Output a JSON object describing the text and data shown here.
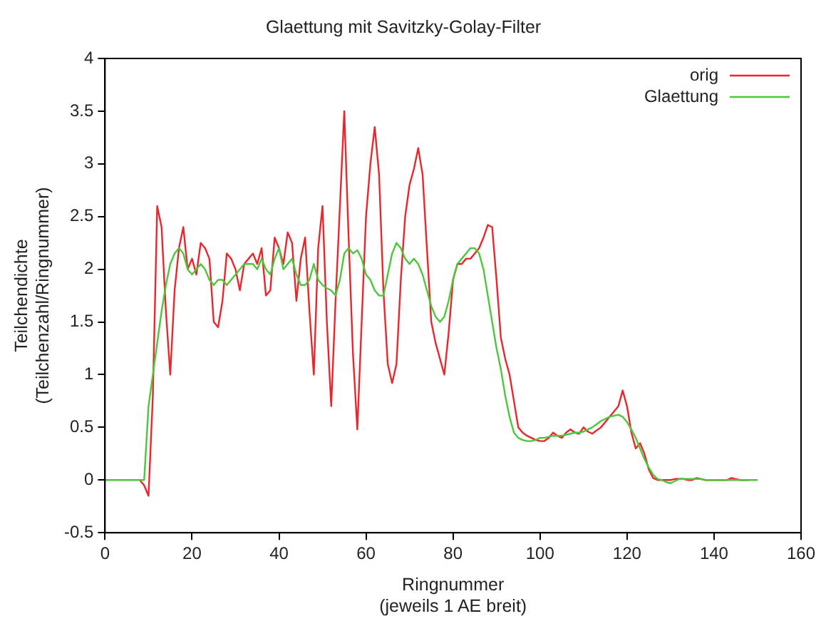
{
  "chart_data": {
    "type": "line",
    "title": "Glaettung mit Savitzky-Golay-Filter",
    "xlabel": "Ringnummer\n(jeweils 1 AE breit)",
    "ylabel": "Teilchendichte\n(Teilchenzahl/Ringnummer)",
    "x": [
      0,
      1,
      2,
      3,
      4,
      5,
      6,
      7,
      8,
      9,
      10,
      11,
      12,
      13,
      14,
      15,
      16,
      17,
      18,
      19,
      20,
      21,
      22,
      23,
      24,
      25,
      26,
      27,
      28,
      29,
      30,
      31,
      32,
      33,
      34,
      35,
      36,
      37,
      38,
      39,
      40,
      41,
      42,
      43,
      44,
      45,
      46,
      47,
      48,
      49,
      50,
      51,
      52,
      53,
      54,
      55,
      56,
      57,
      58,
      59,
      60,
      61,
      62,
      63,
      64,
      65,
      66,
      67,
      68,
      69,
      70,
      71,
      72,
      73,
      74,
      75,
      76,
      77,
      78,
      79,
      80,
      81,
      82,
      83,
      84,
      85,
      86,
      87,
      88,
      89,
      90,
      91,
      92,
      93,
      94,
      95,
      96,
      97,
      98,
      99,
      100,
      101,
      102,
      103,
      104,
      105,
      106,
      107,
      108,
      109,
      110,
      111,
      112,
      113,
      114,
      115,
      116,
      117,
      118,
      119,
      120,
      121,
      122,
      123,
      124,
      125,
      126,
      127,
      128,
      129,
      130,
      131,
      132,
      133,
      134,
      135,
      136,
      137,
      138,
      139,
      140,
      141,
      142,
      143,
      144,
      145,
      146,
      147,
      148,
      149,
      150
    ],
    "series": [
      {
        "name": "orig",
        "color": "#e8262b",
        "values": [
          null,
          null,
          null,
          null,
          null,
          null,
          null,
          null,
          0,
          -0.05,
          -0.15,
          0.8,
          2.6,
          2.4,
          1.6,
          1.0,
          1.8,
          2.2,
          2.4,
          2.0,
          2.1,
          1.95,
          2.25,
          2.2,
          2.1,
          1.5,
          1.45,
          1.7,
          2.15,
          2.1,
          2.0,
          1.8,
          2.05,
          2.1,
          2.15,
          2.05,
          2.2,
          1.75,
          1.8,
          2.3,
          2.2,
          2.05,
          2.35,
          2.25,
          1.7,
          2.1,
          2.3,
          1.6,
          1.0,
          2.2,
          2.6,
          1.5,
          0.7,
          1.7,
          2.6,
          3.5,
          2.3,
          1.2,
          0.48,
          1.5,
          2.5,
          3.0,
          3.35,
          2.9,
          1.8,
          1.1,
          0.92,
          1.1,
          1.9,
          2.5,
          2.8,
          2.95,
          3.15,
          2.9,
          2.2,
          1.5,
          1.3,
          1.15,
          1.0,
          1.4,
          1.9,
          2.05,
          2.05,
          2.1,
          2.1,
          2.15,
          2.2,
          2.3,
          2.42,
          2.4,
          1.9,
          1.35,
          1.15,
          1.0,
          0.75,
          0.5,
          0.45,
          0.42,
          0.4,
          0.38,
          0.37,
          0.37,
          0.4,
          0.45,
          0.42,
          0.4,
          0.45,
          0.48,
          0.45,
          0.44,
          0.5,
          0.46,
          0.44,
          0.47,
          0.5,
          0.55,
          0.6,
          0.65,
          0.7,
          0.85,
          0.7,
          0.45,
          0.3,
          0.35,
          0.25,
          0.1,
          0.02,
          0,
          0,
          0,
          0,
          0.01,
          0.01,
          0.01,
          0,
          0,
          0.02,
          0.01,
          0,
          0,
          0,
          0,
          0,
          0,
          0.02,
          0.01,
          0,
          0,
          0,
          null,
          null
        ]
      },
      {
        "name": "Glaettung",
        "color": "#4cc63a",
        "values": [
          0,
          0,
          0,
          0,
          0,
          0,
          0,
          0,
          0,
          0,
          0.7,
          1.0,
          1.3,
          1.6,
          1.85,
          2.05,
          2.15,
          2.2,
          2.15,
          2.0,
          1.95,
          2.0,
          2.05,
          2.0,
          1.9,
          1.85,
          1.9,
          1.9,
          1.85,
          1.9,
          1.95,
          2.0,
          2.05,
          2.05,
          2.05,
          2.0,
          2.1,
          2.0,
          1.95,
          2.1,
          2.2,
          2.0,
          2.05,
          2.1,
          1.95,
          1.85,
          1.85,
          1.9,
          2.05,
          1.9,
          1.85,
          1.82,
          1.8,
          1.75,
          1.9,
          2.15,
          2.2,
          2.15,
          2.18,
          2.1,
          1.95,
          1.9,
          1.8,
          1.75,
          1.75,
          1.95,
          2.15,
          2.25,
          2.2,
          2.1,
          2.05,
          2.1,
          2.05,
          1.95,
          1.8,
          1.65,
          1.55,
          1.5,
          1.55,
          1.7,
          1.9,
          2.05,
          2.1,
          2.15,
          2.2,
          2.2,
          2.15,
          2.0,
          1.75,
          1.5,
          1.25,
          1.05,
          0.8,
          0.6,
          0.45,
          0.4,
          0.38,
          0.37,
          0.37,
          0.38,
          0.4,
          0.4,
          0.41,
          0.42,
          0.42,
          0.42,
          0.43,
          0.44,
          0.45,
          0.45,
          0.46,
          0.48,
          0.5,
          0.53,
          0.56,
          0.58,
          0.6,
          0.61,
          0.62,
          0.6,
          0.55,
          0.48,
          0.4,
          0.3,
          0.2,
          0.12,
          0.05,
          0.01,
          0,
          -0.02,
          -0.03,
          -0.01,
          0.01,
          0.01,
          0.01,
          0.01,
          0.01,
          0.01,
          0,
          0,
          0,
          0,
          0,
          0,
          0,
          0,
          0,
          0,
          0,
          0,
          0
        ]
      }
    ],
    "xlim": [
      0,
      160
    ],
    "xticks": [
      0,
      20,
      40,
      60,
      80,
      100,
      120,
      140,
      160
    ],
    "ylim": [
      -0.5,
      4
    ],
    "yticks": [
      -0.5,
      0,
      0.5,
      1,
      1.5,
      2,
      2.5,
      3,
      3.5,
      4
    ],
    "grid": false,
    "legend": "top right",
    "marker": "none",
    "line_style": "solid"
  }
}
